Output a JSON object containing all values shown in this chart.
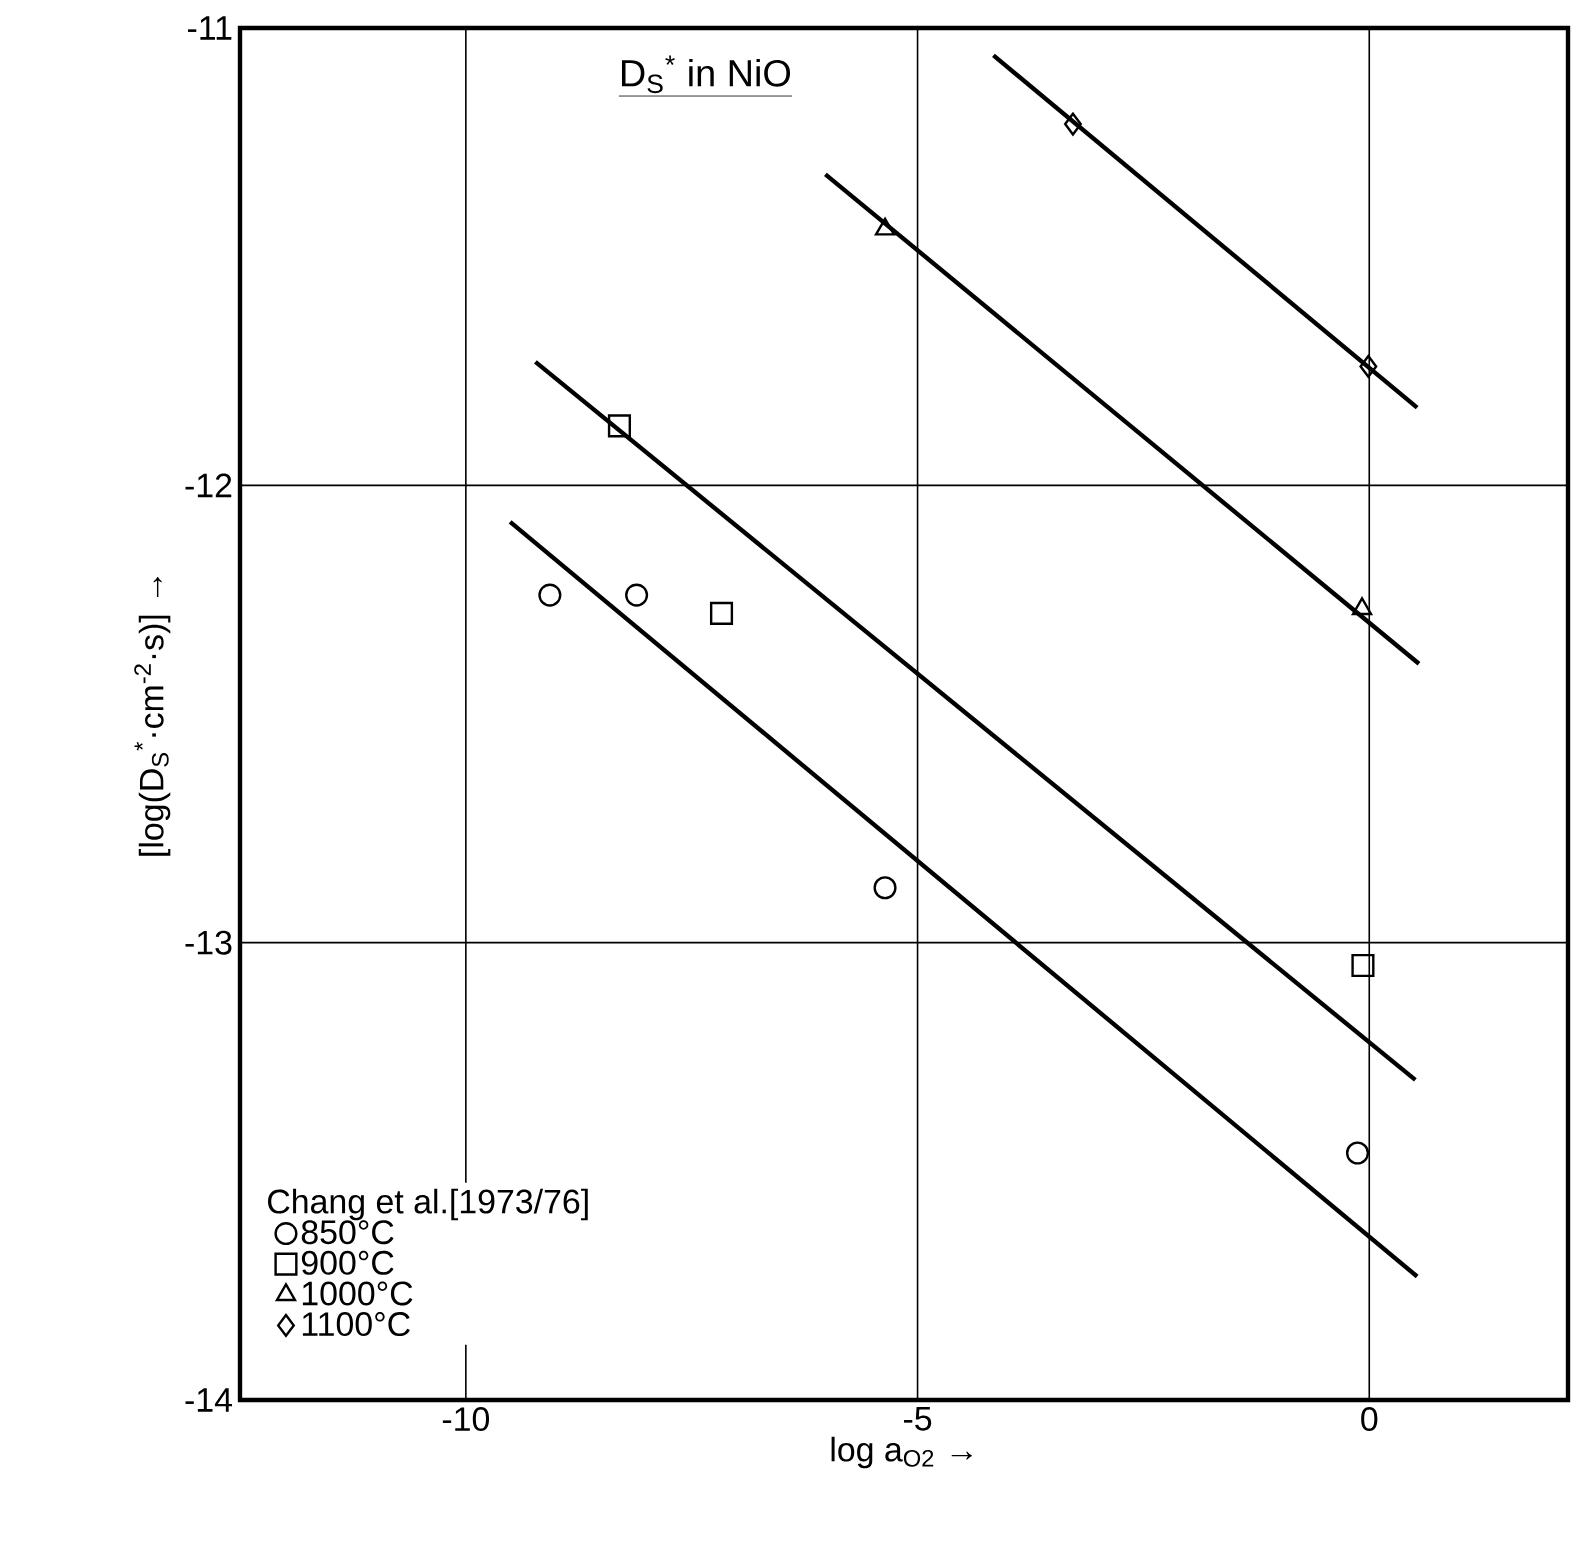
{
  "chart_data": {
    "type": "scatter",
    "annotations": [
      "D$_{S}$$^{*}$ in NiO"
    ],
    "xlabel": "log a$_{O2}$ →",
    "ylabel": "[log(D$_{S}$$^{*}$·cm$^{-2}$·s)] →",
    "legend_title": "Chang et al.[1973/76]",
    "legend": "bottom left",
    "grid": true,
    "xlim": [
      -12.5,
      2.2
    ],
    "ylim": [
      -14,
      -11
    ],
    "xticks": [
      -10,
      -5,
      0
    ],
    "yticks": [
      -14,
      -13,
      -12,
      -11
    ],
    "series": [
      {
        "type": "line",
        "color": "#000000",
        "marker": "none",
        "x": [
          -9.51,
          0.53
        ],
        "values": [
          -12.08,
          -13.73
        ]
      },
      {
        "type": "line",
        "color": "#000000",
        "marker": "none",
        "x": [
          -9.23,
          0.51
        ],
        "values": [
          -11.73,
          -13.3
        ]
      },
      {
        "type": "line",
        "color": "#000000",
        "marker": "none",
        "x": [
          -6.02,
          0.55
        ],
        "values": [
          -11.32,
          -12.39
        ]
      },
      {
        "type": "line",
        "color": "#000000",
        "marker": "none",
        "x": [
          -4.16,
          0.53
        ],
        "values": [
          -11.06,
          -11.83
        ]
      },
      {
        "name": "850°C",
        "color": "#000000",
        "marker": "circle",
        "x": [
          -9.07,
          -8.11,
          -5.36,
          -0.13
        ],
        "values": [
          -12.24,
          -12.24,
          -12.88,
          -13.46
        ]
      },
      {
        "name": "900°C",
        "color": "#000000",
        "marker": "square",
        "x": [
          -8.3,
          -7.17,
          -0.07
        ],
        "values": [
          -11.87,
          -12.28,
          -13.05
        ]
      },
      {
        "name": "1000°C",
        "color": "#000000",
        "marker": "triangle",
        "x": [
          -5.36,
          -0.08
        ],
        "values": [
          -11.44,
          -12.27
        ]
      },
      {
        "name": "1100°C",
        "color": "#000000",
        "marker": "diamond",
        "x": [
          -3.28,
          -0.01
        ],
        "values": [
          -11.21,
          -11.74
        ]
      }
    ]
  }
}
